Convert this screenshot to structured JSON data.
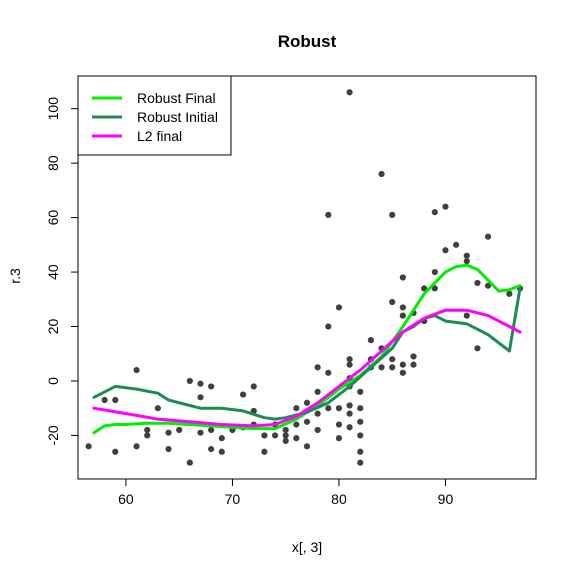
{
  "chart_data": {
    "type": "scatter",
    "title": "Robust",
    "xlabel": "x[, 3]",
    "ylabel": "r.3",
    "xlim": [
      55.5,
      98.5
    ],
    "ylim": [
      -36,
      112
    ],
    "x_ticks": [
      60,
      70,
      80,
      90
    ],
    "y_ticks": [
      -20,
      0,
      20,
      40,
      60,
      80,
      100
    ],
    "grid": false,
    "legend_position": "top-left",
    "point_color": "#404040",
    "points": [
      [
        56.5,
        -24
      ],
      [
        58,
        -7
      ],
      [
        59,
        -7
      ],
      [
        59,
        -26
      ],
      [
        61,
        4
      ],
      [
        61,
        -24
      ],
      [
        62,
        -18
      ],
      [
        62,
        -20
      ],
      [
        63,
        -10
      ],
      [
        64,
        -19
      ],
      [
        64,
        -25
      ],
      [
        65,
        -18
      ],
      [
        66,
        0
      ],
      [
        66,
        -30
      ],
      [
        67,
        -1
      ],
      [
        67,
        -6
      ],
      [
        67,
        -19
      ],
      [
        68,
        -2
      ],
      [
        68,
        -18
      ],
      [
        68,
        -25
      ],
      [
        69,
        -21
      ],
      [
        69,
        -26
      ],
      [
        70,
        -18
      ],
      [
        71,
        -5
      ],
      [
        71,
        -17
      ],
      [
        72,
        -2
      ],
      [
        72,
        -11
      ],
      [
        72,
        -16
      ],
      [
        73,
        -20
      ],
      [
        73,
        -26
      ],
      [
        74,
        -16
      ],
      [
        74,
        -20
      ],
      [
        75,
        -18
      ],
      [
        75,
        -20
      ],
      [
        75,
        -22
      ],
      [
        76,
        -10
      ],
      [
        76,
        -16
      ],
      [
        76,
        -21
      ],
      [
        77,
        -8
      ],
      [
        77,
        -15
      ],
      [
        77,
        -24
      ],
      [
        78,
        5
      ],
      [
        78,
        -4
      ],
      [
        78,
        -12
      ],
      [
        78,
        -18
      ],
      [
        79,
        61
      ],
      [
        79,
        20
      ],
      [
        79,
        3
      ],
      [
        79,
        -10
      ],
      [
        80,
        27
      ],
      [
        80,
        -10
      ],
      [
        80,
        -16
      ],
      [
        80,
        -21
      ],
      [
        81,
        106
      ],
      [
        81,
        8
      ],
      [
        81,
        6
      ],
      [
        81,
        1
      ],
      [
        81,
        -2
      ],
      [
        81,
        -9
      ],
      [
        81,
        -12
      ],
      [
        81,
        -17
      ],
      [
        82,
        -10
      ],
      [
        82,
        -15
      ],
      [
        82,
        -20
      ],
      [
        82,
        -26
      ],
      [
        82,
        -30
      ],
      [
        82,
        -4
      ],
      [
        83,
        15
      ],
      [
        83,
        8
      ],
      [
        83,
        5
      ],
      [
        84,
        76
      ],
      [
        84,
        12
      ],
      [
        84,
        5
      ],
      [
        85,
        61
      ],
      [
        85,
        29
      ],
      [
        85,
        8
      ],
      [
        85,
        5
      ],
      [
        86,
        38
      ],
      [
        86,
        27
      ],
      [
        86,
        24
      ],
      [
        86,
        6
      ],
      [
        86,
        3
      ],
      [
        87,
        25
      ],
      [
        87,
        9
      ],
      [
        87,
        6
      ],
      [
        88,
        22
      ],
      [
        88,
        34
      ],
      [
        89,
        62
      ],
      [
        89,
        40
      ],
      [
        89,
        34
      ],
      [
        90,
        64
      ],
      [
        90,
        48
      ],
      [
        91,
        50
      ],
      [
        92,
        46
      ],
      [
        92,
        44
      ],
      [
        92,
        24
      ],
      [
        93,
        12
      ],
      [
        93,
        36
      ],
      [
        94,
        53
      ],
      [
        94,
        35
      ],
      [
        96,
        32
      ],
      [
        97,
        34
      ]
    ],
    "series": [
      {
        "name": "Robust Final",
        "color": "#00ee00",
        "x": [
          57,
          58,
          59,
          60,
          62,
          64,
          66,
          68,
          70,
          72,
          74,
          76,
          78,
          80,
          82,
          84,
          86,
          88,
          90,
          91,
          92,
          93,
          94,
          95,
          96,
          97
        ],
        "y": [
          -19,
          -16.5,
          -16,
          -16,
          -15.5,
          -15.5,
          -16,
          -16.5,
          -17,
          -17.5,
          -17.5,
          -14,
          -9,
          -3,
          2,
          9,
          20,
          32,
          40,
          42,
          42.5,
          41,
          37,
          33,
          33.5,
          35
        ]
      },
      {
        "name": "Robust Initial",
        "color": "#1e8b57",
        "x": [
          57,
          58,
          59,
          61,
          63,
          64,
          65,
          66,
          67,
          69,
          71,
          73,
          74,
          75,
          77,
          79,
          81,
          83,
          85,
          86,
          87,
          88,
          89,
          90,
          92,
          94,
          96,
          97
        ],
        "y": [
          -6,
          -4,
          -2,
          -3,
          -4.5,
          -7,
          -8,
          -9,
          -10,
          -10,
          -11,
          -13.5,
          -14,
          -13.5,
          -11.5,
          -8,
          -2,
          5,
          12,
          18,
          20,
          23,
          24,
          22,
          21,
          17,
          11,
          34
        ]
      },
      {
        "name": "L2 final",
        "color": "#ff00ff",
        "x": [
          57,
          60,
          63,
          66,
          69,
          72,
          74,
          76,
          78,
          80,
          82,
          84,
          86,
          88,
          90,
          92,
          94,
          96,
          97
        ],
        "y": [
          -10,
          -12,
          -14,
          -15,
          -16,
          -16.5,
          -16,
          -13,
          -8,
          -2,
          4,
          11,
          18,
          23,
          26,
          26,
          24,
          20,
          18
        ]
      }
    ]
  }
}
